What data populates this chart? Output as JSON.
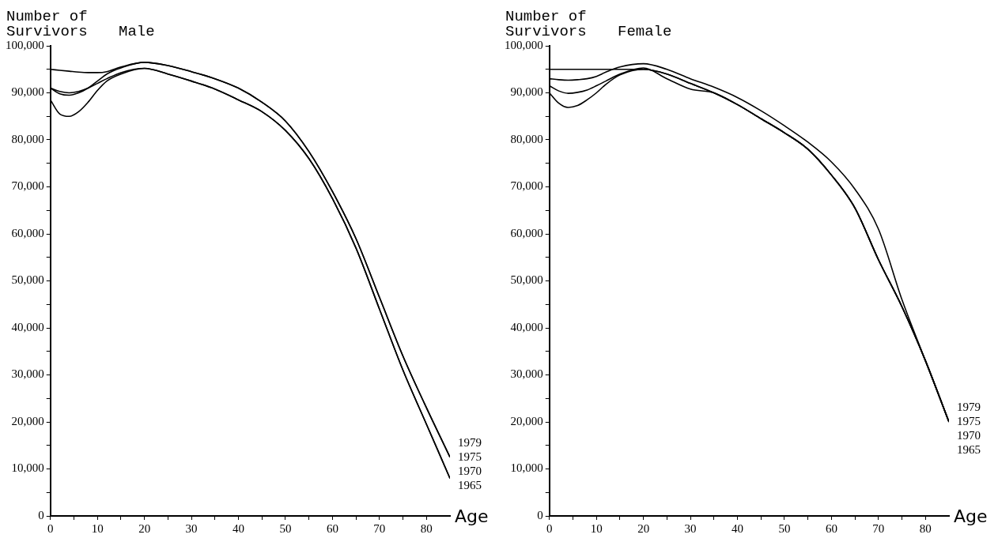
{
  "chart_data": [
    {
      "type": "line",
      "title": "Male",
      "ylabel": "Number of\nSurvivors",
      "xlabel": "Age",
      "grid": false,
      "marker": "none",
      "line_style": "solid",
      "x": [
        0,
        2,
        4,
        6,
        8,
        10,
        12,
        15,
        20,
        25,
        30,
        35,
        40,
        45,
        50,
        55,
        60,
        65,
        70,
        75,
        80,
        85
      ],
      "xlim": [
        0,
        85
      ],
      "ylim": [
        0,
        100000
      ],
      "xticks": [
        0,
        {
          "value": 5,
          "label": null
        },
        10,
        {
          "value": 15,
          "label": null
        },
        20,
        {
          "value": 25,
          "label": null
        },
        30,
        {
          "value": 35,
          "label": null
        },
        40,
        {
          "value": 45,
          "label": null
        },
        50,
        {
          "value": 55,
          "label": null
        },
        60,
        {
          "value": 65,
          "label": null
        },
        70,
        {
          "value": 75,
          "label": null
        },
        80
      ],
      "yticks": [
        0,
        {
          "value": 5000,
          "label": null
        },
        {
          "value": 10000,
          "label": "10,000"
        },
        {
          "value": 15000,
          "label": null
        },
        {
          "value": 20000,
          "label": "20,000"
        },
        {
          "value": 25000,
          "label": null
        },
        {
          "value": 30000,
          "label": "30,000"
        },
        {
          "value": 35000,
          "label": null
        },
        {
          "value": 40000,
          "label": "40,000"
        },
        {
          "value": 45000,
          "label": null
        },
        {
          "value": 50000,
          "label": "50,000"
        },
        {
          "value": 55000,
          "label": null
        },
        {
          "value": 60000,
          "label": "60,000"
        },
        {
          "value": 65000,
          "label": null
        },
        {
          "value": 70000,
          "label": "70,000"
        },
        {
          "value": 75000,
          "label": null
        },
        {
          "value": 80000,
          "label": "80,000"
        },
        {
          "value": 85000,
          "label": null
        },
        {
          "value": 90000,
          "label": "90,000"
        },
        {
          "value": 95000,
          "label": null
        },
        {
          "value": 100000,
          "label": "100,000"
        }
      ],
      "series": [
        {
          "name": "1979",
          "color": "#000000",
          "values": [
            95000,
            94800,
            94600,
            94400,
            94300,
            94300,
            94500,
            95500,
            96500,
            95800,
            94500,
            93000,
            91000,
            88000,
            84000,
            77500,
            69000,
            59000,
            46500,
            34000,
            23000,
            12500
          ]
        },
        {
          "name": "1975",
          "color": "#000000",
          "values": [
            91000,
            89800,
            89500,
            90000,
            91000,
            92500,
            94000,
            95300,
            96500,
            95800,
            94500,
            93000,
            91000,
            88000,
            84000,
            77500,
            69000,
            59000,
            46500,
            34000,
            23000,
            12500
          ]
        },
        {
          "name": "1970",
          "color": "#000000",
          "values": [
            91000,
            90300,
            90000,
            90300,
            91000,
            92000,
            93000,
            94300,
            95200,
            94000,
            92500,
            90800,
            88500,
            86000,
            82000,
            76000,
            67500,
            57000,
            44000,
            31000,
            19500,
            8000
          ]
        },
        {
          "name": "1965",
          "color": "#000000",
          "values": [
            88500,
            85500,
            85000,
            86000,
            88000,
            90500,
            92500,
            94000,
            95200,
            94000,
            92500,
            90800,
            88500,
            86000,
            82000,
            76000,
            67500,
            57000,
            44000,
            31000,
            19500,
            8000
          ]
        }
      ]
    },
    {
      "type": "line",
      "title": "Female",
      "ylabel": "Number of\nSurvivors",
      "xlabel": "Age",
      "grid": false,
      "marker": "none",
      "line_style": "solid",
      "x": [
        0,
        2,
        4,
        6,
        8,
        10,
        12,
        15,
        20,
        25,
        30,
        35,
        40,
        45,
        50,
        55,
        60,
        65,
        70,
        75,
        80,
        85
      ],
      "xlim": [
        0,
        85
      ],
      "ylim": [
        0,
        100000
      ],
      "xticks": [
        0,
        {
          "value": 5,
          "label": null
        },
        10,
        {
          "value": 15,
          "label": null
        },
        20,
        {
          "value": 25,
          "label": null
        },
        30,
        {
          "value": 35,
          "label": null
        },
        40,
        {
          "value": 45,
          "label": null
        },
        50,
        {
          "value": 55,
          "label": null
        },
        60,
        {
          "value": 65,
          "label": null
        },
        70,
        {
          "value": 75,
          "label": null
        },
        80
      ],
      "yticks": [
        0,
        {
          "value": 5000,
          "label": null
        },
        {
          "value": 10000,
          "label": "10,000"
        },
        {
          "value": 15000,
          "label": null
        },
        {
          "value": 20000,
          "label": "20,000"
        },
        {
          "value": 25000,
          "label": null
        },
        {
          "value": 30000,
          "label": "30,000"
        },
        {
          "value": 35000,
          "label": null
        },
        {
          "value": 40000,
          "label": "40,000"
        },
        {
          "value": 45000,
          "label": null
        },
        {
          "value": 50000,
          "label": "50,000"
        },
        {
          "value": 55000,
          "label": null
        },
        {
          "value": 60000,
          "label": "60,000"
        },
        {
          "value": 65000,
          "label": null
        },
        {
          "value": 70000,
          "label": "70,000"
        },
        {
          "value": 75000,
          "label": null
        },
        {
          "value": 80000,
          "label": "80,000"
        },
        {
          "value": 85000,
          "label": null
        },
        {
          "value": 90000,
          "label": "90,000"
        },
        {
          "value": 95000,
          "label": null
        },
        {
          "value": 100000,
          "label": "100,000"
        }
      ],
      "series": [
        {
          "name": "1979",
          "color": "#000000",
          "values": [
            95000,
            95000,
            95000,
            95000,
            95000,
            95000,
            95000,
            95000,
            95000,
            94000,
            92000,
            90000,
            87500,
            84500,
            81500,
            78000,
            72500,
            65500,
            54500,
            44500,
            33000,
            20000
          ]
        },
        {
          "name": "1975",
          "color": "#000000",
          "values": [
            93000,
            92800,
            92700,
            92800,
            93000,
            93500,
            94400,
            95500,
            96200,
            95000,
            93000,
            91200,
            89000,
            86200,
            83000,
            79500,
            75300,
            69500,
            61000,
            46000,
            33000,
            20000
          ]
        },
        {
          "name": "1970",
          "color": "#000000",
          "values": [
            91500,
            90400,
            89900,
            90100,
            90600,
            91500,
            92500,
            94000,
            95300,
            93000,
            90800,
            90000,
            87500,
            84500,
            81500,
            78000,
            72500,
            65500,
            54500,
            44500,
            33000,
            20000
          ]
        },
        {
          "name": "1965",
          "color": "#000000",
          "values": [
            90000,
            87800,
            86900,
            87300,
            88500,
            90000,
            91800,
            93800,
            95000,
            94000,
            92000,
            90000,
            87500,
            84500,
            81500,
            78000,
            72500,
            65500,
            54500,
            44500,
            33000,
            20000
          ]
        }
      ]
    }
  ]
}
